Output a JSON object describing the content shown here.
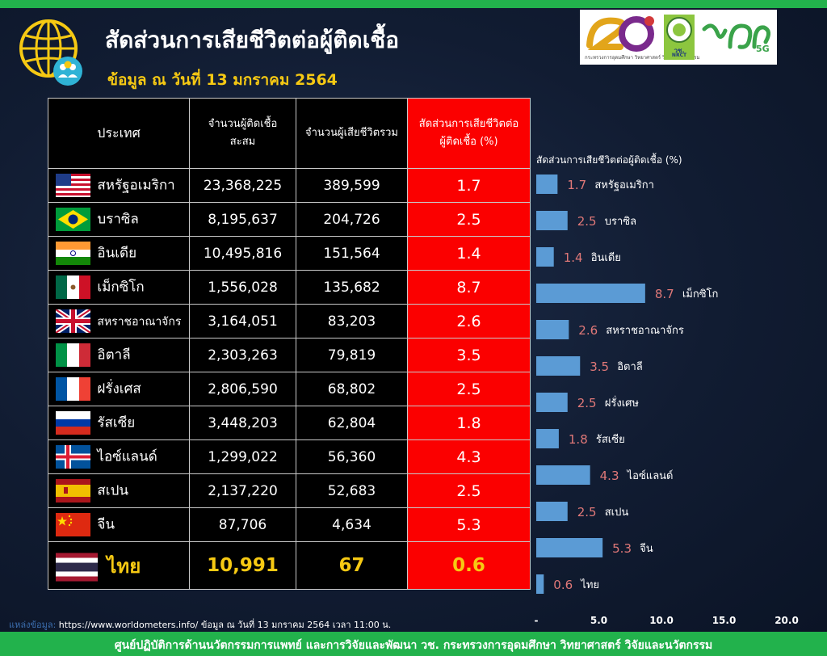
{
  "header": {
    "title": "สัดส่วนการเสียชีวิตต่อผู้ติดเชื้อ",
    "subtitle": "ข้อมูล ณ วันที่ 13 มกราคม 2564"
  },
  "logos": {
    "left_caption": "กระทรวงการอุดมศึกษา วิทยาศาสตร์ วิจัยและนวัตกรรม",
    "middle_label": "วช.",
    "middle_caption": "NRCT",
    "right_suffix": "5G"
  },
  "table": {
    "headers": {
      "country": "ประเทศ",
      "cases_line1": "จำนวนผู้ติดเชื้อ",
      "cases_line2": "สะสม",
      "deaths": "จำนวนผู้เสียชีวิตรวม",
      "ratio_line1": "สัดส่วนการเสียชีวิตต่อ",
      "ratio_line2": "ผู้ติดเชื้อ (%)"
    },
    "rows": [
      {
        "flag": "usa-flag-icon",
        "country": "สหรัฐอเมริกา",
        "cases": "23,368,225",
        "deaths": "389,599",
        "ratio": "1.7"
      },
      {
        "flag": "brazil-flag-icon",
        "country": "บราซิล",
        "cases": "8,195,637",
        "deaths": "204,726",
        "ratio": "2.5"
      },
      {
        "flag": "india-flag-icon",
        "country": "อินเดีย",
        "cases": "10,495,816",
        "deaths": "151,564",
        "ratio": "1.4"
      },
      {
        "flag": "mexico-flag-icon",
        "country": "เม็กซิโก",
        "cases": "1,556,028",
        "deaths": "135,682",
        "ratio": "8.7"
      },
      {
        "flag": "uk-flag-icon",
        "country": "สหราชอาณาจักร",
        "cases": "3,164,051",
        "deaths": "83,203",
        "ratio": "2.6"
      },
      {
        "flag": "italy-flag-icon",
        "country": "อิตาลี",
        "cases": "2,303,263",
        "deaths": "79,819",
        "ratio": "3.5"
      },
      {
        "flag": "france-flag-icon",
        "country": "ฝรั่งเศส",
        "cases": "2,806,590",
        "deaths": "68,802",
        "ratio": "2.5"
      },
      {
        "flag": "russia-flag-icon",
        "country": "รัสเซีย",
        "cases": "3,448,203",
        "deaths": "62,804",
        "ratio": "1.8"
      },
      {
        "flag": "iceland-flag-icon",
        "country": "ไอซ์แลนด์",
        "cases": "1,299,022",
        "deaths": "56,360",
        "ratio": "4.3"
      },
      {
        "flag": "spain-flag-icon",
        "country": "สเปน",
        "cases": "2,137,220",
        "deaths": "52,683",
        "ratio": "2.5"
      },
      {
        "flag": "china-flag-icon",
        "country": "จีน",
        "cases": "87,706",
        "deaths": "4,634",
        "ratio": "5.3"
      },
      {
        "flag": "thailand-flag-icon",
        "country": "ไทย",
        "cases": "10,991",
        "deaths": "67",
        "ratio": "0.6"
      }
    ]
  },
  "chart_data": {
    "type": "bar",
    "orientation": "horizontal",
    "title": "สัดส่วนการเสียชีวิตต่อผู้ติดเชื้อ (%)",
    "categories": [
      "สหรัฐอเมริกา",
      "บราซิล",
      "อินเดีย",
      "เม็กซิโก",
      "สหราชอาณาจักร",
      "อิตาลี",
      "ฝรั่งเศษ",
      "รัสเซีย",
      "ไอซ์แลนด์",
      "สเปน",
      "จีน",
      "ไทย"
    ],
    "values": [
      1.7,
      2.5,
      1.4,
      8.7,
      2.6,
      3.5,
      2.5,
      1.8,
      4.3,
      2.5,
      5.3,
      0.6
    ],
    "value_labels": [
      "1.7",
      "2.5",
      "1.4",
      "8.7",
      "2.6",
      "3.5",
      "2.5",
      "1.8",
      "4.3",
      "2.5",
      "5.3",
      "0.6"
    ],
    "xlim": [
      0,
      20
    ],
    "x_ticks": [
      "-",
      "5.0",
      "10.0",
      "15.0",
      "20.0"
    ],
    "grid": false,
    "legend": false,
    "bar_color": "#5b9bd5",
    "value_label_color": "#e07878"
  },
  "source": {
    "label": "แหล่งข้อมูล:",
    "text": "https://www.worldometers.info/ ข้อมูล ณ วันที่ 13 มกราคม 2564 เวลา 11:00 น."
  },
  "footer": {
    "text": "ศูนย์ปฏิบัติการด้านนวัตกรรมการแพทย์ และการวิจัยและพัฒนา วช.   กระทรวงการอุดมศึกษา วิทยาศาสตร์ วิจัยและนวัตกรรม"
  },
  "colors": {
    "accent_green": "#22b24c",
    "title_yellow": "#f6c913",
    "ratio_red": "#fb0000"
  }
}
